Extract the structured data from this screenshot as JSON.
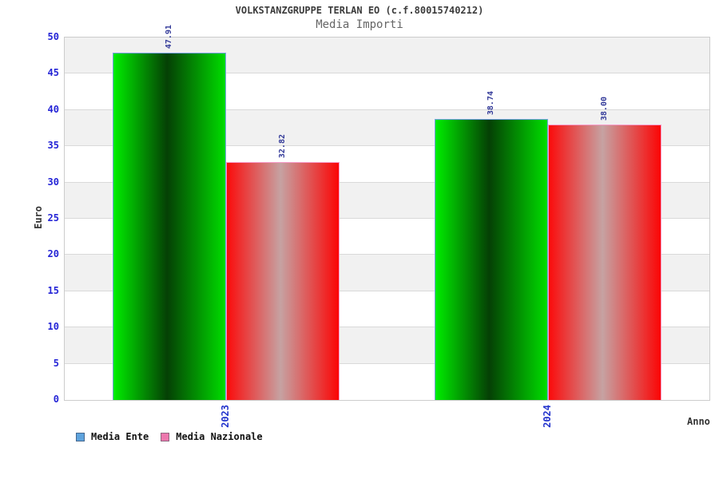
{
  "header": {
    "title": "VOLKSTANZGRUPPE TERLAN EO (c.f.80015740212)",
    "subtitle": "Media Importi"
  },
  "chart_data": {
    "type": "bar",
    "title": "VOLKSTANZGRUPPE TERLAN EO (c.f.80015740212)",
    "subtitle": "Media Importi",
    "categories": [
      "2023",
      "2024"
    ],
    "series": [
      {
        "name": "Media Ente",
        "values": [
          47.91,
          38.74
        ],
        "value_labels": [
          "47.91",
          "38.74"
        ],
        "legend_color": "#5ea3dd",
        "legend_border": "#46688f",
        "bar_gradient": [
          "#00ee00",
          "#054005",
          "#00dd00"
        ],
        "bar_border": "#76a0e8"
      },
      {
        "name": "Media Nazionale",
        "values": [
          32.82,
          38.0
        ],
        "value_labels": [
          "32.82",
          "38.00"
        ],
        "legend_color": "#ec77ad",
        "legend_border": "#8f6680",
        "bar_gradient": [
          "#fb0b0b",
          "#c6a2a2",
          "#fb0505"
        ],
        "bar_border": "#f79ac8"
      }
    ],
    "xlabel": "Anno",
    "ylabel": "Euro",
    "ylim": [
      0,
      50
    ],
    "yticks": [
      0,
      5,
      10,
      15,
      20,
      25,
      30,
      35,
      40,
      45,
      50
    ],
    "grid": true,
    "legend_position": "bottom",
    "band_colors": [
      "#ffffff",
      "#f1f1f1"
    ],
    "grid_color": "#d9d9d9",
    "tick_color": "#2424d6",
    "category_label_color": "#2233cc",
    "value_label_color": "#333a99"
  }
}
